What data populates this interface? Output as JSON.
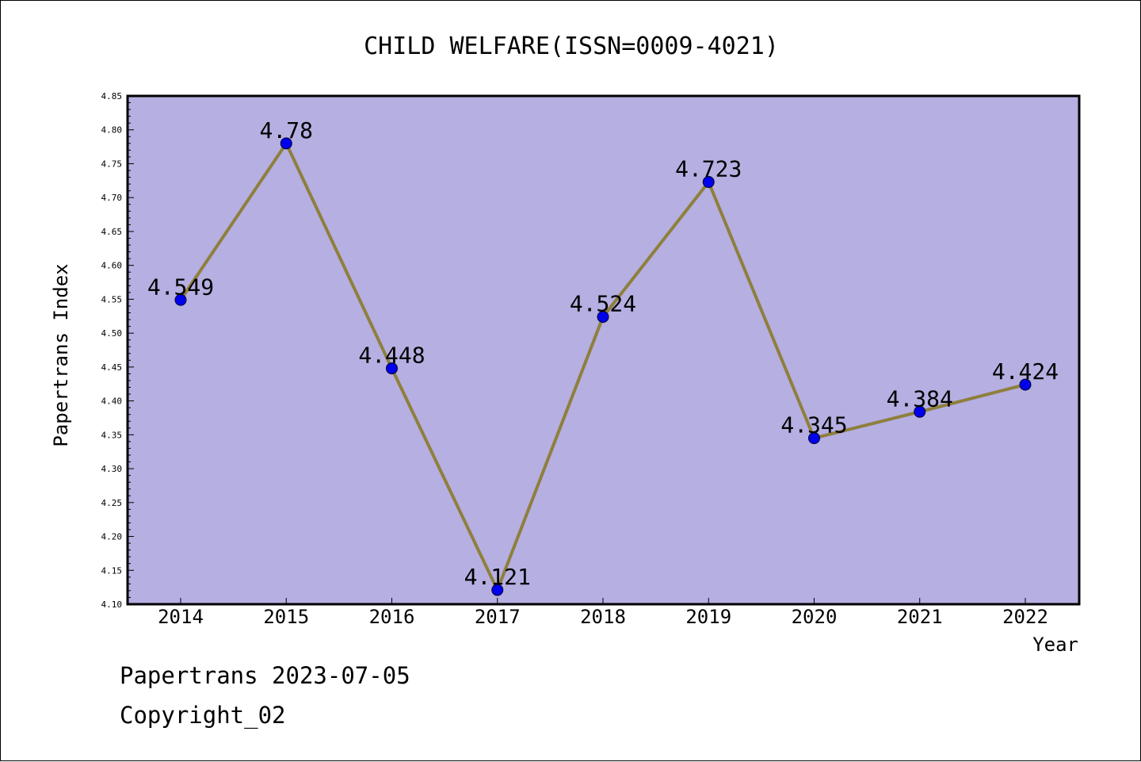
{
  "chart_data": {
    "type": "line",
    "title": "CHILD WELFARE(ISSN=0009-4021)",
    "xlabel": "Year",
    "ylabel": "Papertrans Index",
    "categories": [
      "2014",
      "2015",
      "2016",
      "2017",
      "2018",
      "2019",
      "2020",
      "2021",
      "2022"
    ],
    "series": [
      {
        "values": [
          4.549,
          4.78,
          4.448,
          4.121,
          4.524,
          4.723,
          4.345,
          4.384,
          4.424
        ],
        "labels": [
          "4.549",
          "4.78",
          "4.448",
          "4.121",
          "4.524",
          "4.723",
          "4.345",
          "4.384",
          "4.424"
        ]
      }
    ],
    "ylim": [
      4.1,
      4.85
    ],
    "yticks": [
      "4.10",
      "4.15",
      "4.20",
      "4.25",
      "4.30",
      "4.35",
      "4.40",
      "4.45",
      "4.50",
      "4.55",
      "4.60",
      "4.65",
      "4.70",
      "4.75",
      "4.80",
      "4.85"
    ],
    "grid": false,
    "legend": "none",
    "colors": {
      "plot_background": "#b5afe2",
      "line": "#8e7f3c",
      "marker": "#0000ee",
      "axis": "#000000"
    }
  },
  "footer": {
    "date_line": "Papertrans 2023-07-05",
    "copyright": "Copyright_02"
  }
}
